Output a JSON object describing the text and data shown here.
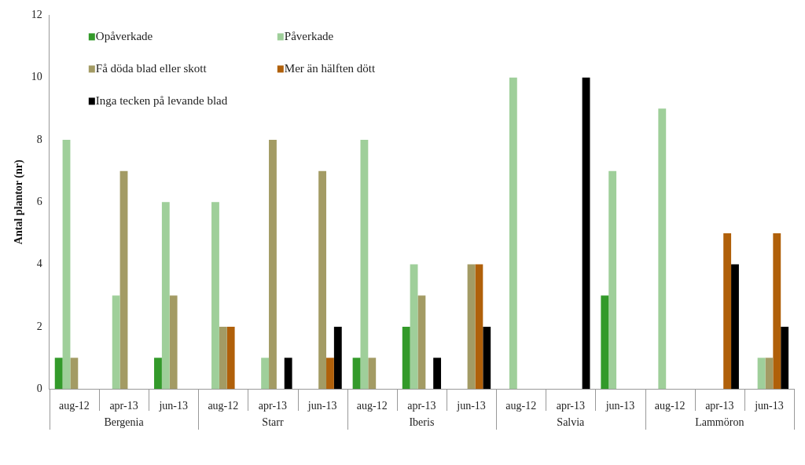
{
  "chart_data": {
    "type": "bar",
    "ylabel": "Antal plantor (nr)",
    "categories": [
      "aug-12",
      "apr-13",
      "jun-13",
      "aug-12",
      "apr-13",
      "jun-13",
      "aug-12",
      "apr-13",
      "jun-13",
      "aug-12",
      "apr-13",
      "jun-13",
      "aug-12",
      "apr-13",
      "jun-13"
    ],
    "annotations": [
      "Bergenia",
      "Starr",
      "Iberis",
      "Salvia",
      "Lammöron"
    ],
    "series": [
      {
        "name": "Opåverkade",
        "color": "#339a2a",
        "values": [
          1,
          0,
          1,
          0,
          0,
          0,
          1,
          2,
          0,
          0,
          0,
          3,
          0,
          0,
          0
        ]
      },
      {
        "name": "Påverkade",
        "color": "#9fcf9a",
        "values": [
          8,
          3,
          6,
          6,
          1,
          0,
          8,
          4,
          0,
          10,
          0,
          7,
          9,
          0,
          1
        ]
      },
      {
        "name": "Få döda blad eller skott",
        "color": "#a39b64",
        "values": [
          1,
          7,
          3,
          2,
          8,
          7,
          1,
          3,
          4,
          0,
          0,
          0,
          0,
          0,
          1
        ]
      },
      {
        "name": "Mer än hälften dött",
        "color": "#b0600a",
        "values": [
          0,
          0,
          0,
          2,
          0,
          1,
          0,
          0,
          4,
          0,
          0,
          0,
          0,
          5,
          5
        ]
      },
      {
        "name": "Inga tecken på levande blad",
        "color": "#000000",
        "values": [
          0,
          0,
          0,
          0,
          1,
          2,
          0,
          1,
          2,
          0,
          10,
          0,
          0,
          4,
          2
        ]
      }
    ],
    "ylim": [
      0,
      12
    ],
    "yticks": [
      0,
      2,
      4,
      6,
      8,
      10,
      12
    ],
    "grid": false,
    "legend": "top left"
  }
}
